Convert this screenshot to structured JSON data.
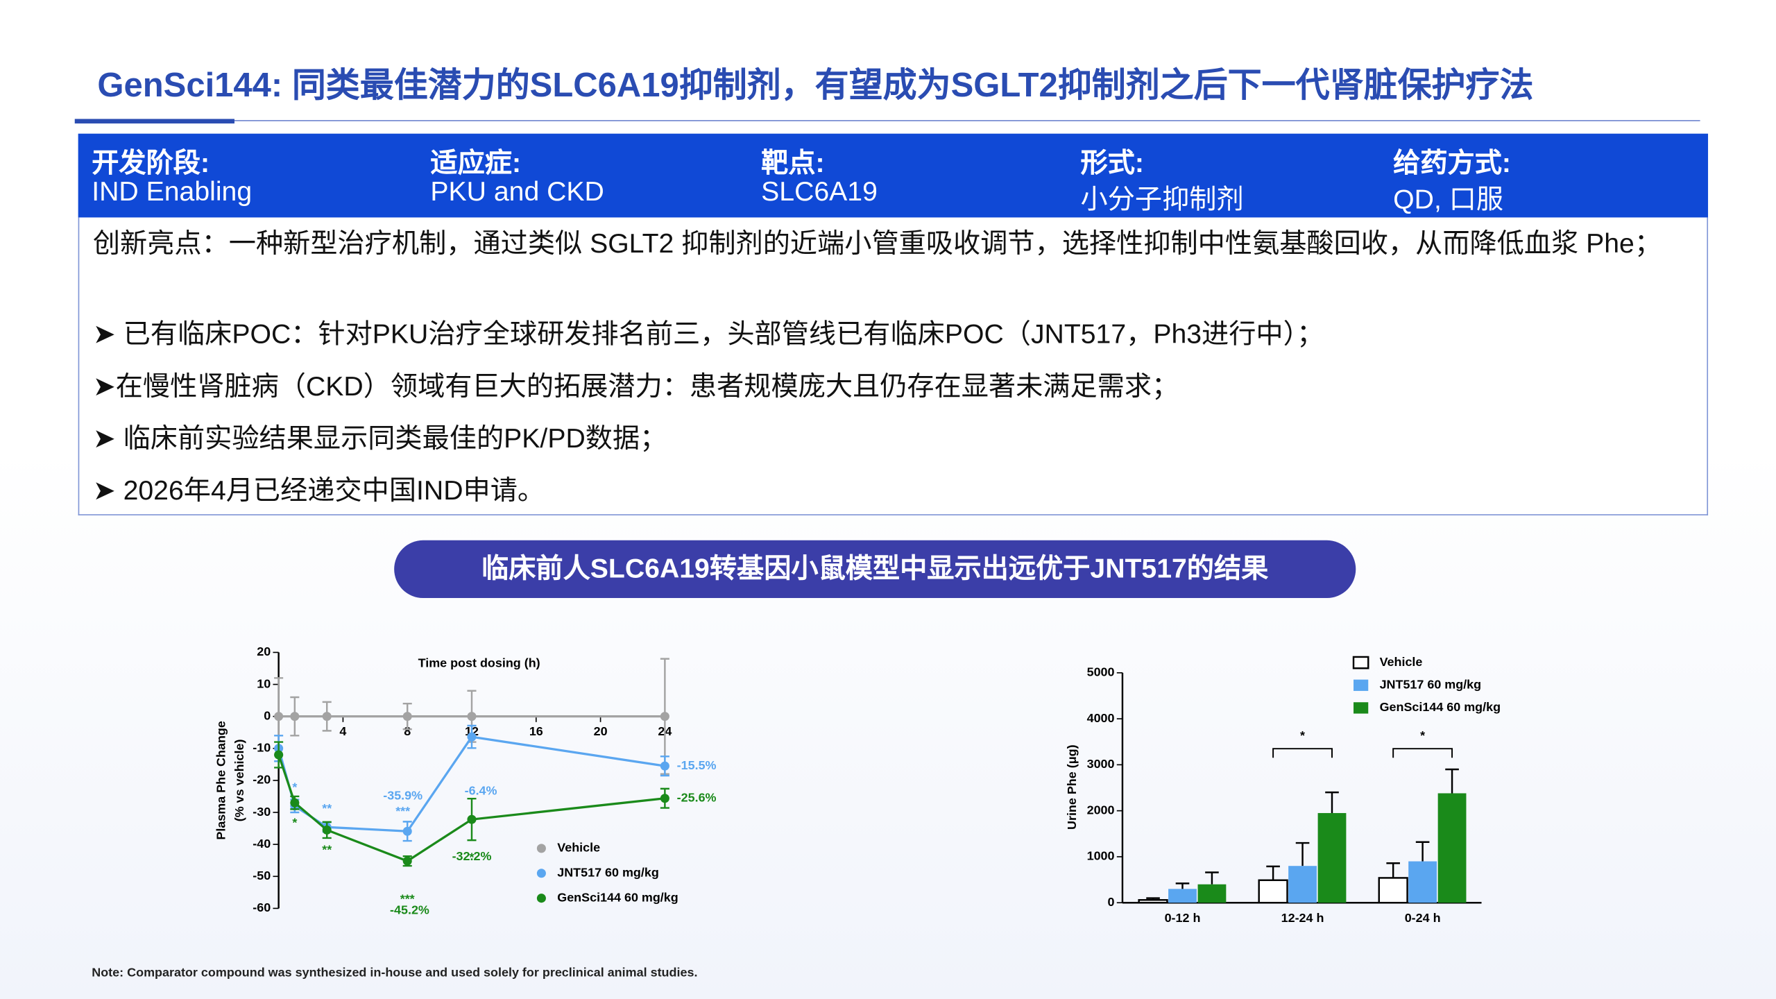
{
  "header": {
    "title": "GenSci144: 同类最佳潜力的SLC6A19抑制剂，有望成为SGLT2抑制剂之后下一代肾脏保护疗法"
  },
  "info": [
    {
      "label": "开发阶段:",
      "value": "IND Enabling"
    },
    {
      "label": "适应症:",
      "value": "PKU and CKD"
    },
    {
      "label": "靶点:",
      "value": "SLC6A19"
    },
    {
      "label": "形式:",
      "value": "小分子抑制剂"
    },
    {
      "label": "给药方式:",
      "value": "QD, 口服"
    }
  ],
  "highlights": [
    "创新亮点：一种新型治疗机制，通过类似 SGLT2 抑制剂的近端小管重吸收调节，选择性抑制中性氨基酸回收，从而降低血浆 Phe；",
    "➤ 已有临床POC：针对PKU治疗全球研发排名前三，头部管线已有临床POC（JNT517，Ph3进行中）；",
    "➤在慢性肾脏病（CKD）领域有巨大的拓展潜力：患者规模庞大且仍存在显著未满足需求；",
    "➤ 临床前实验结果显示同类最佳的PK/PD数据；",
    "➤ 2026年4月已经递交中国IND申请。"
  ],
  "banner": "临床前人SLC6A19转基因小鼠模型中显示出远优于JNT517的结果",
  "note": "Note: Comparator compound was synthesized in-house and used solely for preclinical animal studies.",
  "chart_data": [
    {
      "type": "line",
      "title": "Time post dosing (h)",
      "ylabel": [
        "Plasma Phe Change",
        "(% vs vehicle)"
      ],
      "x": [
        0,
        1,
        3,
        8,
        12,
        24
      ],
      "xlim": [
        0,
        24
      ],
      "xticks": [
        4,
        8,
        12,
        16,
        20,
        24
      ],
      "ylim": [
        -60,
        20
      ],
      "yticks": [
        -60,
        -50,
        -40,
        -30,
        -20,
        -10,
        0,
        10,
        20
      ],
      "series": [
        {
          "name": "Vehicle",
          "color": "#a3a3a3",
          "values": [
            0,
            0,
            0,
            0,
            0,
            0
          ],
          "errors": [
            12,
            6,
            4.5,
            4,
            8,
            18
          ]
        },
        {
          "name": "JNT517 60 mg/kg",
          "color": "#5aa6f0",
          "values": [
            -10,
            -28,
            -34.6,
            -35.9,
            -6.4,
            -15.5
          ],
          "errors": [
            4,
            2,
            1.5,
            3,
            3.5,
            3
          ],
          "significance": [
            null,
            "*",
            "**",
            "***",
            null,
            null
          ],
          "value_labels": [
            null,
            null,
            null,
            "-35.9%",
            "-6.4%",
            "-15.5%"
          ]
        },
        {
          "name": "GenSci144 60 mg/kg",
          "color": "#1a8a1a",
          "values": [
            -12,
            -27,
            -35.5,
            -45.2,
            -32.2,
            -25.6
          ],
          "errors": [
            4,
            2,
            2.5,
            1.5,
            6.5,
            3
          ],
          "significance": [
            null,
            "*",
            "**",
            "***",
            "*",
            null
          ],
          "value_labels": [
            null,
            null,
            null,
            "-45.2%",
            "-32.2%",
            "-25.6%"
          ]
        }
      ]
    },
    {
      "type": "bar",
      "ylabel": "Urine Phe (μg)",
      "categories": [
        "0-12 h",
        "12-24 h",
        "0-24 h"
      ],
      "ylim": [
        0,
        5000
      ],
      "yticks": [
        0,
        1000,
        2000,
        3000,
        4000,
        5000
      ],
      "series": [
        {
          "name": "Vehicle",
          "color": "#ffffff",
          "values": [
            60,
            490,
            540
          ],
          "errors": [
            40,
            300,
            320
          ]
        },
        {
          "name": "JNT517 60 mg/kg",
          "color": "#5aa6f0",
          "values": [
            300,
            800,
            900
          ],
          "errors": [
            120,
            500,
            420
          ]
        },
        {
          "name": "GenSci144 60 mg/kg",
          "color": "#1a8a1a",
          "values": [
            400,
            1950,
            2380
          ],
          "errors": [
            260,
            450,
            520
          ]
        }
      ],
      "significance": [
        null,
        "*",
        "*"
      ]
    }
  ]
}
